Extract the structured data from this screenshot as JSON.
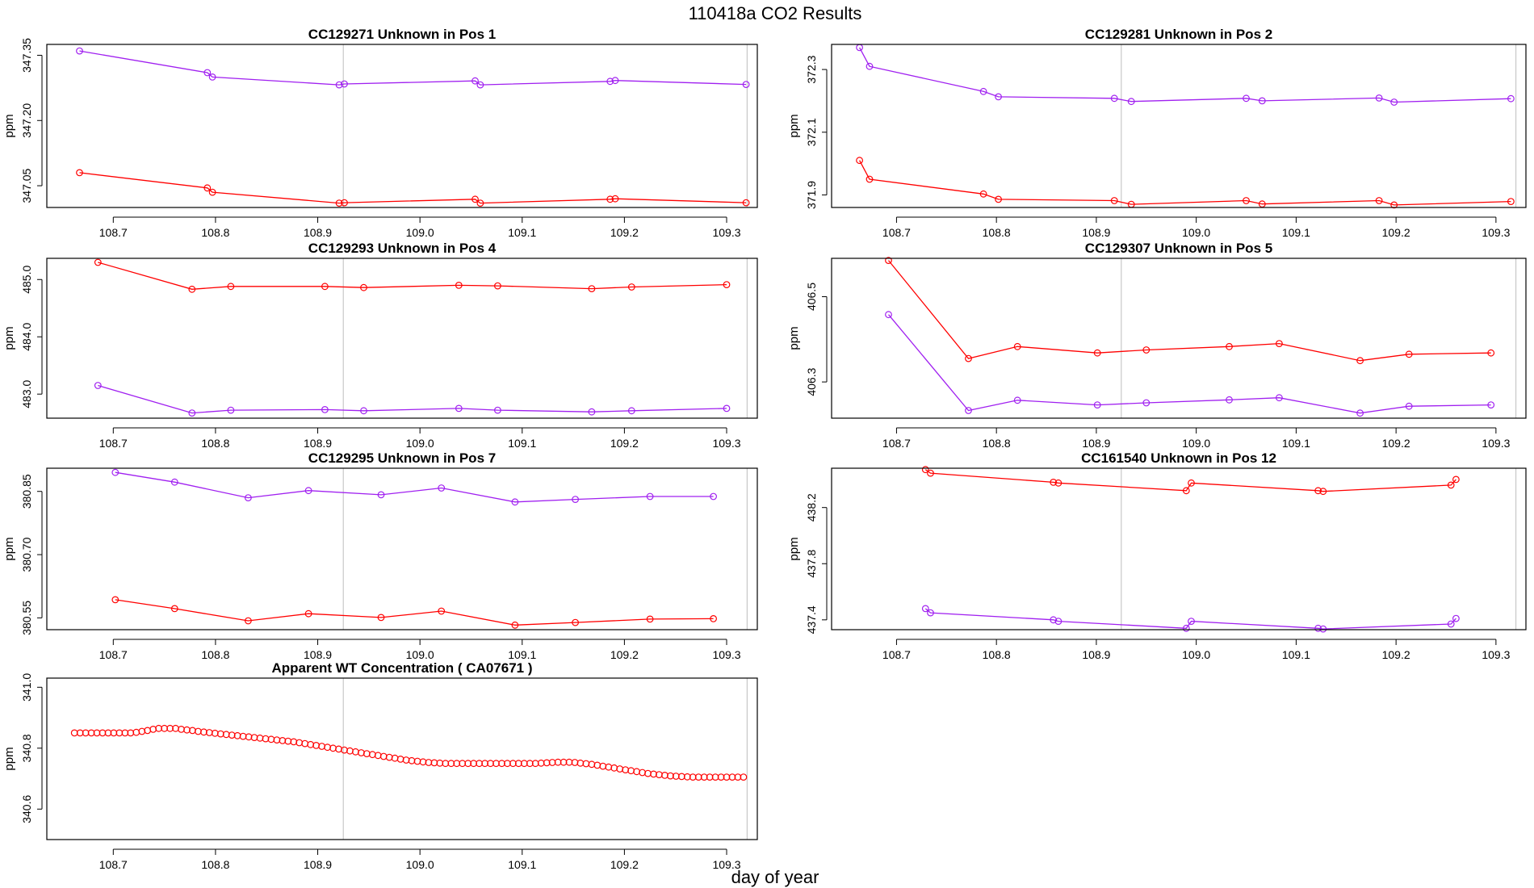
{
  "figure": {
    "title": "110418a  CO2 Results",
    "xlabel": "day of year",
    "line_colors": {
      "red": "#ff0000",
      "purple": "#a020f0",
      "ref": "#bebebe"
    }
  },
  "chart_data": [
    {
      "type": "line",
      "title": "CC129271    Unknown in Pos 1",
      "ylabel": "ppm",
      "xlim": [
        108.635,
        109.33
      ],
      "ylim": [
        347.0,
        347.375
      ],
      "xticks": [
        "108.7",
        "108.8",
        "108.9",
        "109.0",
        "109.1",
        "109.2",
        "109.3"
      ],
      "yticks": [
        "347.05",
        "347.20",
        "347.35"
      ],
      "vlines": [
        108.925,
        109.32
      ],
      "series": [
        {
          "name": "purple",
          "color": "#a020f0",
          "x": [
            108.667,
            108.792,
            108.797,
            108.921,
            108.926,
            109.054,
            109.059,
            109.186,
            109.191,
            109.319
          ],
          "y": [
            347.36,
            347.31,
            347.3,
            347.282,
            347.284,
            347.291,
            347.282,
            347.29,
            347.292,
            347.283
          ]
        },
        {
          "name": "red",
          "color": "#ff0000",
          "x": [
            108.667,
            108.792,
            108.797,
            108.921,
            108.926,
            109.054,
            109.059,
            109.186,
            109.191,
            109.319
          ],
          "y": [
            347.08,
            347.045,
            347.035,
            347.01,
            347.011,
            347.019,
            347.01,
            347.019,
            347.02,
            347.011
          ]
        }
      ]
    },
    {
      "type": "line",
      "title": "CC129281    Unknown in Pos 2",
      "ylabel": "ppm",
      "xlim": [
        108.635,
        109.33
      ],
      "ylim": [
        371.86,
        372.38
      ],
      "xticks": [
        "108.7",
        "108.8",
        "108.9",
        "109.0",
        "109.1",
        "109.2",
        "109.3"
      ],
      "yticks": [
        "371.9",
        "372.1",
        "372.3"
      ],
      "vlines": [
        108.925,
        109.32
      ],
      "series": [
        {
          "name": "purple",
          "color": "#a020f0",
          "x": [
            108.663,
            108.673,
            108.787,
            108.802,
            108.918,
            108.935,
            109.05,
            109.066,
            109.183,
            109.198,
            109.315
          ],
          "y": [
            372.37,
            372.31,
            372.23,
            372.213,
            372.208,
            372.198,
            372.208,
            372.2,
            372.209,
            372.196,
            372.207
          ]
        },
        {
          "name": "red",
          "color": "#ff0000",
          "x": [
            108.663,
            108.673,
            108.787,
            108.802,
            108.918,
            108.935,
            109.05,
            109.066,
            109.183,
            109.198,
            109.315
          ],
          "y": [
            372.01,
            371.95,
            371.903,
            371.886,
            371.882,
            371.87,
            371.882,
            371.871,
            371.882,
            371.868,
            371.879
          ]
        }
      ]
    },
    {
      "type": "line",
      "title": "CC129293    Unknown in Pos 4",
      "ylabel": "ppm",
      "xlim": [
        108.635,
        109.33
      ],
      "ylim": [
        482.58,
        485.37
      ],
      "xticks": [
        "108.7",
        "108.8",
        "108.9",
        "109.0",
        "109.1",
        "109.2",
        "109.3"
      ],
      "yticks": [
        "483.0",
        "484.0",
        "485.0"
      ],
      "vlines": [
        108.925,
        109.32
      ],
      "series": [
        {
          "name": "red",
          "color": "#ff0000",
          "x": [
            108.685,
            108.777,
            108.815,
            108.907,
            108.945,
            109.038,
            109.076,
            109.168,
            109.207,
            109.3
          ],
          "y": [
            485.3,
            484.83,
            484.88,
            484.88,
            484.86,
            484.9,
            484.89,
            484.84,
            484.87,
            484.91
          ]
        },
        {
          "name": "purple",
          "color": "#a020f0",
          "x": [
            108.685,
            108.777,
            108.815,
            108.907,
            108.945,
            109.038,
            109.076,
            109.168,
            109.207,
            109.3
          ],
          "y": [
            483.15,
            482.67,
            482.72,
            482.73,
            482.71,
            482.75,
            482.72,
            482.69,
            482.71,
            482.75
          ]
        }
      ]
    },
    {
      "type": "line",
      "title": "CC129307    Unknown in Pos 5",
      "ylabel": "ppm",
      "xlim": [
        108.635,
        109.33
      ],
      "ylim": [
        406.215,
        406.59
      ],
      "xticks": [
        "108.7",
        "108.8",
        "108.9",
        "109.0",
        "109.1",
        "109.2",
        "109.3"
      ],
      "yticks": [
        "406.3",
        "406.5"
      ],
      "vlines": [
        108.925,
        109.32
      ],
      "series": [
        {
          "name": "red",
          "color": "#ff0000",
          "x": [
            108.692,
            108.772,
            108.821,
            108.901,
            108.95,
            109.033,
            109.083,
            109.164,
            109.213,
            109.295
          ],
          "y": [
            406.585,
            406.355,
            406.383,
            406.368,
            406.375,
            406.383,
            406.39,
            406.35,
            406.365,
            406.368
          ]
        },
        {
          "name": "purple",
          "color": "#a020f0",
          "x": [
            108.692,
            108.772,
            108.821,
            108.901,
            108.95,
            109.033,
            109.083,
            109.164,
            109.213,
            109.295
          ],
          "y": [
            406.458,
            406.233,
            406.257,
            406.246,
            406.251,
            406.258,
            406.263,
            406.227,
            406.243,
            406.246
          ]
        }
      ]
    },
    {
      "type": "line",
      "title": "CC129295    Unknown in Pos 7",
      "ylabel": "ppm",
      "xlim": [
        108.635,
        109.33
      ],
      "ylim": [
        380.522,
        380.905
      ],
      "xticks": [
        "108.7",
        "108.8",
        "108.9",
        "109.0",
        "109.1",
        "109.2",
        "109.3"
      ],
      "yticks": [
        "380.55",
        "380.70",
        "380.85"
      ],
      "vlines": [
        108.925,
        109.32
      ],
      "series": [
        {
          "name": "purple",
          "color": "#a020f0",
          "x": [
            108.702,
            108.76,
            108.832,
            108.891,
            108.962,
            109.021,
            109.093,
            109.152,
            109.225,
            109.287
          ],
          "y": [
            380.895,
            380.872,
            380.835,
            380.852,
            380.842,
            380.858,
            380.825,
            380.831,
            380.838,
            380.838
          ]
        },
        {
          "name": "red",
          "color": "#ff0000",
          "x": [
            108.702,
            108.76,
            108.832,
            108.891,
            108.962,
            109.021,
            109.093,
            109.152,
            109.225,
            109.287
          ],
          "y": [
            380.593,
            380.572,
            380.543,
            380.56,
            380.551,
            380.566,
            380.533,
            380.539,
            380.547,
            380.548
          ]
        }
      ]
    },
    {
      "type": "line",
      "title": "CC161540    Unknown in Pos 12",
      "ylabel": "ppm",
      "xlim": [
        108.635,
        109.33
      ],
      "ylim": [
        437.33,
        438.48
      ],
      "xticks": [
        "108.7",
        "108.8",
        "108.9",
        "109.0",
        "109.1",
        "109.2",
        "109.3"
      ],
      "yticks": [
        "437.4",
        "437.8",
        "438.2"
      ],
      "vlines": [
        108.925,
        109.32
      ],
      "series": [
        {
          "name": "red",
          "color": "#ff0000",
          "x": [
            108.729,
            108.734,
            108.857,
            108.862,
            108.99,
            108.995,
            109.122,
            109.127,
            109.255,
            109.26
          ],
          "y": [
            438.47,
            438.445,
            438.38,
            438.375,
            438.32,
            438.375,
            438.32,
            438.315,
            438.36,
            438.4
          ]
        },
        {
          "name": "purple",
          "color": "#a020f0",
          "x": [
            108.729,
            108.734,
            108.857,
            108.862,
            108.99,
            108.995,
            109.122,
            109.127,
            109.255,
            109.26
          ],
          "y": [
            437.48,
            437.45,
            437.4,
            437.39,
            437.34,
            437.39,
            437.34,
            437.335,
            437.37,
            437.41
          ]
        }
      ]
    },
    {
      "type": "scatter",
      "title": "Apparent WT Concentration ( CA07671 )",
      "ylabel": "ppm",
      "xlim": [
        108.635,
        109.33
      ],
      "ylim": [
        340.5,
        341.03
      ],
      "xticks": [
        "108.7",
        "108.8",
        "108.9",
        "109.0",
        "109.1",
        "109.2",
        "109.3"
      ],
      "yticks": [
        "340.6",
        "340.8",
        "341.0"
      ],
      "vlines": [
        108.925,
        109.32
      ],
      "series": [
        {
          "name": "red",
          "color": "#ff0000",
          "x": [
            108.662,
            108.6675,
            108.673,
            108.6785,
            108.684,
            108.6895,
            108.695,
            108.7005,
            108.706,
            108.7115,
            108.717,
            108.7225,
            108.728,
            108.7335,
            108.739,
            108.7445,
            108.75,
            108.7555,
            108.761,
            108.7665,
            108.772,
            108.7775,
            108.783,
            108.7885,
            108.794,
            108.7995,
            108.805,
            108.8105,
            108.816,
            108.8215,
            108.827,
            108.8325,
            108.838,
            108.8435,
            108.849,
            108.8545,
            108.86,
            108.8655,
            108.871,
            108.8765,
            108.882,
            108.8875,
            108.893,
            108.8985,
            108.904,
            108.9095,
            108.915,
            108.9205,
            108.926,
            108.9315,
            108.937,
            108.9425,
            108.948,
            108.9535,
            108.959,
            108.9645,
            108.97,
            108.9755,
            108.981,
            108.9865,
            108.992,
            108.9975,
            109.003,
            109.0085,
            109.014,
            109.0195,
            109.025,
            109.0305,
            109.036,
            109.0415,
            109.047,
            109.0525,
            109.058,
            109.0635,
            109.069,
            109.0745,
            109.08,
            109.0855,
            109.091,
            109.0965,
            109.102,
            109.1075,
            109.113,
            109.1185,
            109.124,
            109.1295,
            109.135,
            109.1405,
            109.146,
            109.1515,
            109.157,
            109.1625,
            109.168,
            109.1735,
            109.179,
            109.1845,
            109.19,
            109.1955,
            109.201,
            109.2065,
            109.212,
            109.2175,
            109.223,
            109.2285,
            109.234,
            109.2395,
            109.245,
            109.2505,
            109.256,
            109.2615,
            109.267,
            109.2725,
            109.278,
            109.2835,
            109.289,
            109.2945,
            109.3,
            109.3055,
            109.311,
            109.3165
          ],
          "y": [
            340.85,
            340.85,
            340.85,
            340.85,
            340.85,
            340.85,
            340.85,
            340.85,
            340.85,
            340.85,
            340.85,
            340.852,
            340.855,
            340.858,
            340.862,
            340.865,
            340.865,
            340.865,
            340.865,
            340.862,
            340.86,
            340.858,
            340.855,
            340.853,
            340.851,
            340.849,
            340.847,
            340.845,
            340.843,
            340.841,
            340.839,
            340.837,
            340.835,
            340.833,
            340.831,
            340.829,
            340.827,
            340.825,
            340.823,
            340.821,
            340.818,
            340.815,
            340.812,
            340.809,
            340.806,
            340.803,
            340.8,
            340.797,
            340.794,
            340.791,
            340.788,
            340.785,
            340.782,
            340.779,
            340.776,
            340.773,
            340.77,
            340.767,
            340.764,
            340.761,
            340.759,
            340.757,
            340.755,
            340.753,
            340.752,
            340.751,
            340.75,
            340.75,
            340.75,
            340.75,
            340.75,
            340.75,
            340.75,
            340.75,
            340.75,
            340.75,
            340.75,
            340.75,
            340.75,
            340.75,
            340.75,
            340.75,
            340.75,
            340.751,
            340.752,
            340.753,
            340.754,
            340.754,
            340.754,
            340.753,
            340.751,
            340.749,
            340.747,
            340.744,
            340.741,
            340.738,
            340.735,
            340.732,
            340.729,
            340.726,
            340.723,
            340.72,
            340.717,
            340.715,
            340.713,
            340.711,
            340.709,
            340.708,
            340.707,
            340.706,
            340.705,
            340.705,
            340.705,
            340.705,
            340.705,
            340.705,
            340.705,
            340.705,
            340.705,
            340.705
          ]
        }
      ]
    }
  ]
}
